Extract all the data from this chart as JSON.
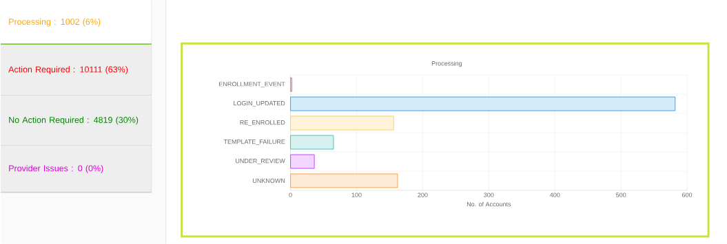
{
  "chart_data": [
    {
      "type": "other",
      "annotations": [
        "Processing : 1002 (6%)",
        "Action Required : 10111 (63%)",
        "No Action Required : 4819 (30%)",
        "Provider Issues : 0 (0%)"
      ]
    },
    {
      "type": "bar",
      "orientation": "horizontal",
      "title": "Processing",
      "xlabel": "No. of Accounts",
      "categories": [
        "ENROLLMENT_EVENT",
        "LOGIN_UPDATED",
        "RE_ENROLLED",
        "TEMPLATE_FAILURE",
        "UNDER_REVIEW",
        "UNKNOWN"
      ],
      "values": [
        2,
        582,
        156,
        65,
        36,
        162
      ],
      "colors": [
        "#ff6384",
        "#36a2eb",
        "#ffce56",
        "#4bc0c0",
        "#c445ff",
        "#ff9f40"
      ],
      "xlim": [
        0,
        600
      ],
      "xticks": [
        0,
        100,
        200,
        300,
        400,
        500,
        600
      ],
      "grid": true
    }
  ]
}
